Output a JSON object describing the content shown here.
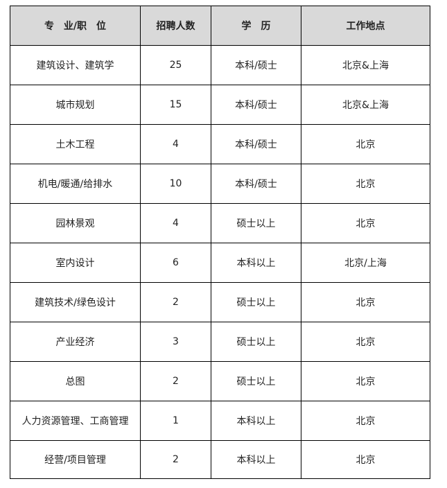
{
  "header": [
    "专　业/职　位",
    "招聘人数",
    "学　历",
    "工作地点"
  ],
  "rows": [
    [
      "建筑设计、建筑学",
      "25",
      "本科/硕士",
      "北京&上海"
    ],
    [
      "城市规划",
      "15",
      "本科/硕士",
      "北京&上海"
    ],
    [
      "土木工程",
      "4",
      "本科/硕士",
      "北京"
    ],
    [
      "机电/暖通/给排水",
      "10",
      "本科/硕士",
      "北京"
    ],
    [
      "园林景观",
      "4",
      "硕士以上",
      "北京"
    ],
    [
      "室内设计",
      "6",
      "本科以上",
      "北京/上海"
    ],
    [
      "建筑技术/绿色设计",
      "2",
      "硕士以上",
      "北京"
    ],
    [
      "产业经济",
      "3",
      "硕士以上",
      "北京"
    ],
    [
      "总图",
      "2",
      "硕士以上",
      "北京"
    ],
    [
      "人力资源管理、工商管理",
      "1",
      "本科以上",
      "北京"
    ],
    [
      "经营/项目管理",
      "2",
      "本科以上",
      "北京"
    ]
  ],
  "colors": {
    "header_bg": "#d9d9d9",
    "border": "#000000"
  }
}
